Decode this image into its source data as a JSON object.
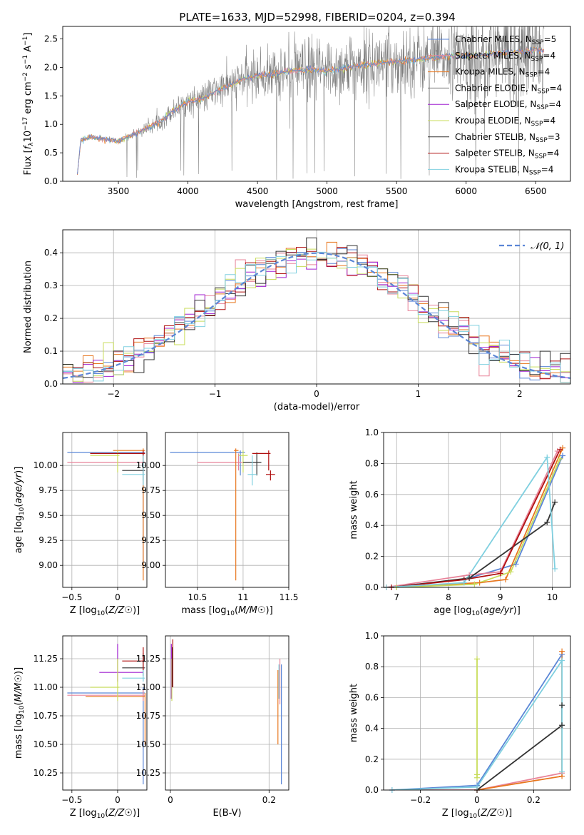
{
  "figure": {
    "title": "PLATE=1633, MJD=52998, FIBERID=0204, z=0.394"
  },
  "series_colors": [
    "#5b86d6",
    "#e8849a",
    "#e8771f",
    "#777777",
    "#a020d0",
    "#c8dc5a",
    "#333333",
    "#b01010",
    "#80d0e0"
  ],
  "chart_data": [
    {
      "id": "spectrum",
      "type": "line",
      "title": "PLATE=1633, MJD=52998, FIBERID=0204, z=0.394",
      "xlabel": "wavelength [Angstrom, rest frame]",
      "ylabel": "Flux [f_λ 10^-17 erg cm^-2 s^-1 A^-1]",
      "xlim": [
        3100,
        6750
      ],
      "ylim": [
        0,
        2.72
      ],
      "xticks": [
        3500,
        4000,
        4500,
        5000,
        5500,
        6000,
        6500
      ],
      "yticks": [
        0.0,
        0.5,
        1.0,
        1.5,
        2.0,
        2.5
      ],
      "grid": false,
      "legend_position": "top-right",
      "legend": [
        {
          "base": "Chabrier MILES, N",
          "sub": "SSP",
          "tail": "=5"
        },
        {
          "base": "Salpeter MILES, N",
          "sub": "SSP",
          "tail": "=4"
        },
        {
          "base": "Kroupa MILES, N",
          "sub": "SSP",
          "tail": "=4"
        },
        {
          "base": "Chabrier ELODIE, N",
          "sub": "SSP",
          "tail": "=4"
        },
        {
          "base": "Salpeter ELODIE, N",
          "sub": "SSP",
          "tail": "=4"
        },
        {
          "base": "Kroupa ELODIE, N",
          "sub": "SSP",
          "tail": "=4"
        },
        {
          "base": "Chabrier STELIB, N",
          "sub": "SSP",
          "tail": "=3"
        },
        {
          "base": "Salpeter STELIB, N",
          "sub": "SSP",
          "tail": "=4"
        },
        {
          "base": "Kroupa STELIB, N",
          "sub": "SSP",
          "tail": "=4"
        }
      ],
      "model_continuum": {
        "x": [
          3200,
          3230,
          3300,
          3400,
          3500,
          3600,
          3700,
          3800,
          3900,
          4000,
          4100,
          4200,
          4300,
          4400,
          4500,
          4600,
          4700,
          4800,
          4900,
          5000,
          5100,
          5200,
          5300,
          5400,
          5500,
          5600,
          5700,
          5800,
          5900,
          6000,
          6100,
          6200,
          6300,
          6400,
          6500
        ],
        "y": [
          0.0,
          0.72,
          0.78,
          0.74,
          0.7,
          0.82,
          0.92,
          1.05,
          1.25,
          1.4,
          1.45,
          1.58,
          1.68,
          1.8,
          1.85,
          1.88,
          1.92,
          1.95,
          1.97,
          1.93,
          1.98,
          2.02,
          2.05,
          2.08,
          2.1,
          2.12,
          2.15,
          2.18,
          2.2,
          2.2,
          2.22,
          2.25,
          2.26,
          2.28,
          2.3
        ]
      },
      "observed_noise_amplitude": 0.6
    },
    {
      "id": "residuals",
      "type": "histogram",
      "xlabel": "(data-model)/error",
      "ylabel": "Normed distribution",
      "xlim": [
        -2.5,
        2.5
      ],
      "ylim": [
        0,
        0.47
      ],
      "xticks": [
        -2,
        -1,
        0,
        1,
        2
      ],
      "yticks": [
        0.0,
        0.1,
        0.2,
        0.3,
        0.4
      ],
      "grid": true,
      "bin_width": 0.1,
      "legend_position": "top-right",
      "legend": [
        {
          "base": "𝒩(0, 1)",
          "sub": "",
          "tail": ""
        }
      ]
    },
    {
      "id": "age_vs_Z",
      "type": "errorbar",
      "xlabel": "Z [log10(Z/Z☉)]",
      "ylabel": "age  [log10(age/yr)]",
      "xlim": [
        -0.6,
        0.32
      ],
      "ylim": [
        8.78,
        10.33
      ],
      "xticks": [
        -0.5,
        0.0
      ],
      "ytick_labels": [
        "9.00",
        "9.25",
        "9.50",
        "9.75",
        "10.00"
      ],
      "yticks": [
        9.0,
        9.25,
        9.5,
        9.75,
        10.0
      ],
      "grid": true,
      "points": [
        {
          "c": 0,
          "x": 0.28,
          "y": 10.13,
          "xl": -0.55,
          "xh": 0.3,
          "yl": 9.02,
          "yh": 10.15
        },
        {
          "c": 1,
          "x": 0.28,
          "y": 10.03,
          "xl": -0.55,
          "xh": 0.3,
          "yl": 9.9,
          "yh": 10.12
        },
        {
          "c": 2,
          "x": 0.28,
          "y": 10.15,
          "xl": -0.05,
          "xh": 0.3,
          "yl": 8.85,
          "yh": 10.17
        },
        {
          "c": 5,
          "x": 0.0,
          "y": 10.1,
          "xl": -0.3,
          "xh": 0.02,
          "yl": 9.93,
          "yh": 10.15
        },
        {
          "c": 6,
          "x": 0.28,
          "y": 9.95,
          "xl": 0.05,
          "xh": 0.3,
          "yl": 9.85,
          "yh": 10.13
        },
        {
          "c": 7,
          "x": 0.28,
          "y": 10.12,
          "xl": -0.3,
          "xh": 0.3,
          "yl": 9.95,
          "yh": 10.15
        },
        {
          "c": 8,
          "x": 0.28,
          "y": 9.91,
          "xl": 0.05,
          "xh": 0.3,
          "yl": 9.8,
          "yh": 10.1
        }
      ]
    },
    {
      "id": "age_vs_mass",
      "type": "errorbar",
      "xlabel": "mass [log10(M/M☉)]",
      "ylabel": "",
      "xlim": [
        10.15,
        11.5
      ],
      "ylim": [
        8.78,
        10.33
      ],
      "xticks": [
        10.5,
        11.0,
        11.5
      ],
      "ytick_labels": [
        "9.00",
        "9.25",
        "9.50",
        "9.75",
        "10.00"
      ],
      "yticks": [
        9.0,
        9.25,
        9.5,
        9.75,
        10.0
      ],
      "grid": true,
      "points": [
        {
          "c": 0,
          "x": 10.97,
          "y": 10.13,
          "xl": 10.2,
          "xh": 11.02,
          "yl": 9.9,
          "yh": 10.15
        },
        {
          "c": 1,
          "x": 10.95,
          "y": 10.03,
          "xl": 10.5,
          "xh": 11.0,
          "yl": 9.95,
          "yh": 10.12
        },
        {
          "c": 2,
          "x": 10.92,
          "y": 10.15,
          "xl": 10.9,
          "xh": 10.95,
          "yl": 8.85,
          "yh": 10.17
        },
        {
          "c": 5,
          "x": 11.0,
          "y": 10.1,
          "xl": 10.95,
          "xh": 11.05,
          "yl": 9.93,
          "yh": 10.15
        },
        {
          "c": 6,
          "x": 11.15,
          "y": 10.03,
          "xl": 11.0,
          "xh": 11.2,
          "yl": 9.9,
          "yh": 10.13
        },
        {
          "c": 7,
          "x": 11.28,
          "y": 10.12,
          "xl": 11.1,
          "xh": 11.3,
          "yl": 9.95,
          "yh": 10.15
        },
        {
          "c": 7,
          "x": 11.3,
          "y": 9.91,
          "xl": 11.25,
          "xh": 11.35,
          "yl": 9.85,
          "yh": 9.95
        },
        {
          "c": 8,
          "x": 11.1,
          "y": 9.91,
          "xl": 11.05,
          "xh": 11.15,
          "yl": 9.8,
          "yh": 10.1
        }
      ]
    },
    {
      "id": "massweight_vs_age",
      "type": "line",
      "xlabel": "age  [log10(age/yr)]",
      "ylabel": "mass weight",
      "xlim": [
        6.75,
        10.35
      ],
      "ylim": [
        0,
        1.0
      ],
      "xticks": [
        7,
        8,
        9,
        10
      ],
      "yticks": [
        0.0,
        0.2,
        0.4,
        0.6,
        0.8,
        1.0
      ],
      "grid": true,
      "series": [
        {
          "c": 0,
          "x": [
            6.8,
            8.3,
            9.3,
            10.2
          ],
          "y": [
            0.0,
            0.05,
            0.15,
            0.85
          ]
        },
        {
          "c": 1,
          "x": [
            6.8,
            8.4,
            9.0,
            10.1
          ],
          "y": [
            0.0,
            0.08,
            0.1,
            0.88
          ]
        },
        {
          "c": 2,
          "x": [
            6.8,
            8.6,
            9.1,
            10.2
          ],
          "y": [
            0.0,
            0.03,
            0.05,
            0.9
          ]
        },
        {
          "c": 5,
          "x": [
            7.0,
            8.5,
            9.2,
            10.15
          ],
          "y": [
            0.0,
            0.02,
            0.1,
            0.83
          ]
        },
        {
          "c": 6,
          "x": [
            6.9,
            8.4,
            9.9,
            10.05
          ],
          "y": [
            0.0,
            0.06,
            0.42,
            0.55
          ]
        },
        {
          "c": 7,
          "x": [
            6.9,
            8.3,
            9.0,
            10.15
          ],
          "y": [
            0.0,
            0.05,
            0.09,
            0.89
          ]
        },
        {
          "c": 8,
          "x": [
            6.8,
            8.3,
            9.9,
            10.05
          ],
          "y": [
            0.0,
            0.03,
            0.84,
            0.12
          ]
        }
      ]
    },
    {
      "id": "mass_vs_Z",
      "type": "errorbar",
      "xlabel": "Z [log10(Z/Z☉)]",
      "ylabel": "mass [log10(M/M☉)]",
      "xlim": [
        -0.6,
        0.32
      ],
      "ylim": [
        10.1,
        11.45
      ],
      "xticks": [
        -0.5,
        0.0
      ],
      "ytick_labels": [
        "10.25",
        "10.50",
        "10.75",
        "11.00",
        "11.25"
      ],
      "yticks": [
        10.25,
        10.5,
        10.75,
        11.0,
        11.25
      ],
      "grid": true,
      "points": [
        {
          "c": 0,
          "x": 0.28,
          "y": 10.95,
          "xl": -0.55,
          "xh": 0.3,
          "yl": 10.15,
          "yh": 11.0
        },
        {
          "c": 1,
          "x": 0.28,
          "y": 10.93,
          "xl": -0.55,
          "xh": 0.3,
          "yl": 10.88,
          "yh": 10.98
        },
        {
          "c": 2,
          "x": 0.3,
          "y": 10.92,
          "xl": -0.35,
          "xh": 0.3,
          "yl": 10.5,
          "yh": 10.95
        },
        {
          "c": 4,
          "x": 0.0,
          "y": 11.13,
          "xl": -0.2,
          "xh": 0.28,
          "yl": 11.05,
          "yh": 11.38
        },
        {
          "c": 5,
          "x": 0.0,
          "y": 11.0,
          "xl": -0.3,
          "xh": 0.02,
          "yl": 10.88,
          "yh": 11.25
        },
        {
          "c": 6,
          "x": 0.28,
          "y": 11.17,
          "xl": 0.05,
          "xh": 0.3,
          "yl": 11.1,
          "yh": 11.3
        },
        {
          "c": 7,
          "x": 0.28,
          "y": 11.23,
          "xl": 0.05,
          "xh": 0.3,
          "yl": 11.15,
          "yh": 11.35
        },
        {
          "c": 8,
          "x": 0.28,
          "y": 11.08,
          "xl": 0.05,
          "xh": 0.3,
          "yl": 11.05,
          "yh": 11.15
        }
      ]
    },
    {
      "id": "mass_vs_ebv",
      "type": "errorbar",
      "xlabel": "E(B-V)",
      "ylabel": "",
      "xlim": [
        -0.01,
        0.24
      ],
      "ylim": [
        10.1,
        11.45
      ],
      "xticks": [
        0.0,
        0.2
      ],
      "ytick_labels": [
        "10.25",
        "10.50",
        "10.75",
        "11.00",
        "11.25"
      ],
      "yticks": [
        10.25,
        10.5,
        10.75,
        11.0,
        11.25
      ],
      "grid": true,
      "points": [
        {
          "c": 0,
          "x": 0.225,
          "y": 10.95,
          "xl": 0.225,
          "xh": 0.225,
          "yl": 10.15,
          "yh": 11.2
        },
        {
          "c": 1,
          "x": 0.222,
          "y": 11.0,
          "xl": 0.222,
          "xh": 0.222,
          "yl": 10.85,
          "yh": 11.25
        },
        {
          "c": 2,
          "x": 0.218,
          "y": 10.92,
          "xl": 0.218,
          "xh": 0.218,
          "yl": 10.5,
          "yh": 11.15
        },
        {
          "c": 4,
          "x": 0.002,
          "y": 11.13,
          "xl": 0.002,
          "xh": 0.002,
          "yl": 10.9,
          "yh": 11.38
        },
        {
          "c": 5,
          "x": 0.003,
          "y": 11.0,
          "xl": 0.003,
          "xh": 0.003,
          "yl": 10.88,
          "yh": 11.25
        },
        {
          "c": 6,
          "x": 0.004,
          "y": 11.17,
          "xl": 0.004,
          "xh": 0.004,
          "yl": 11.0,
          "yh": 11.35
        },
        {
          "c": 7,
          "x": 0.005,
          "y": 11.23,
          "xl": 0.005,
          "xh": 0.005,
          "yl": 11.0,
          "yh": 11.42
        },
        {
          "c": 8,
          "x": 0.22,
          "y": 11.08,
          "xl": 0.22,
          "xh": 0.22,
          "yl": 10.9,
          "yh": 11.2
        }
      ]
    },
    {
      "id": "massweight_vs_Z",
      "type": "line",
      "xlabel": "Z [log10(Z/Z☉)]",
      "ylabel": "mass weight",
      "xlim": [
        -0.33,
        0.33
      ],
      "ylim": [
        0,
        1.0
      ],
      "xticks": [
        -0.2,
        0.0,
        0.2
      ],
      "yticks": [
        0.0,
        0.2,
        0.4,
        0.6,
        0.8,
        1.0
      ],
      "grid": true,
      "series": [
        {
          "c": 0,
          "x": [
            -0.3,
            0.0,
            0.3
          ],
          "y": [
            0.0,
            0.03,
            0.88
          ]
        },
        {
          "c": 1,
          "x": [
            -0.3,
            0.0,
            0.3
          ],
          "y": [
            0.0,
            0.0,
            0.11
          ]
        },
        {
          "c": 2,
          "x": [
            0.0,
            0.3,
            0.3
          ],
          "y": [
            0.0,
            0.09,
            0.9
          ]
        },
        {
          "c": 5,
          "x": [
            0.0,
            0.0,
            0.0
          ],
          "y": [
            0.08,
            0.85,
            0.1
          ]
        },
        {
          "c": 6,
          "x": [
            0.0,
            0.3,
            0.3
          ],
          "y": [
            0.0,
            0.42,
            0.55
          ]
        },
        {
          "c": 8,
          "x": [
            -0.3,
            0.0,
            0.3,
            0.3
          ],
          "y": [
            0.0,
            0.02,
            0.84,
            0.12
          ]
        }
      ]
    }
  ]
}
